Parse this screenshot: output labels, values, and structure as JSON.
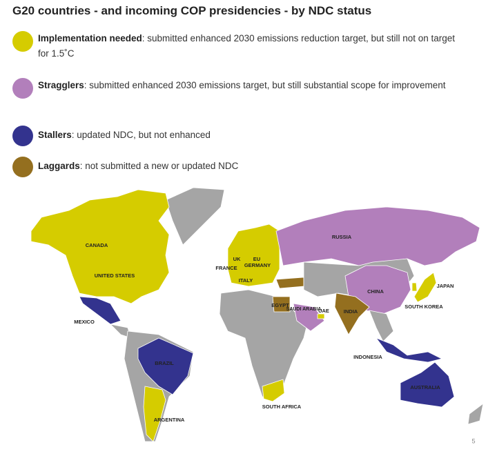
{
  "title": "G20 countries - and incoming COP presidencies - by NDC status",
  "legend": [
    {
      "label": "Implementation needed",
      "description": ": submitted enhanced 2030 emissions reduction target, but still not on target for 1.5˚C"
    },
    {
      "label": "Stragglers",
      "description": ": submitted enhanced 2030 emissions target, but still substantial scope for improvement"
    },
    {
      "label": "Stallers",
      "description": ": updated NDC, but not enhanced"
    },
    {
      "label": "Laggards",
      "description": ": not submitted a new or updated NDC"
    }
  ],
  "countries": [
    "CANADA",
    "UNITED STATES",
    "MEXICO",
    "BRAZIL",
    "ARGENTINA",
    "UK",
    "EU",
    "FRANCE",
    "GERMANY",
    "ITALY",
    "RUSSIA",
    "EGYPT",
    "SAUDI ARABIA",
    "UAE",
    "INDIA",
    "CHINA",
    "JAPAN",
    "SOUTH KOREA",
    "INDONESIA",
    "AUSTRALIA",
    "SOUTH AFRICA"
  ],
  "page_number": "5"
}
